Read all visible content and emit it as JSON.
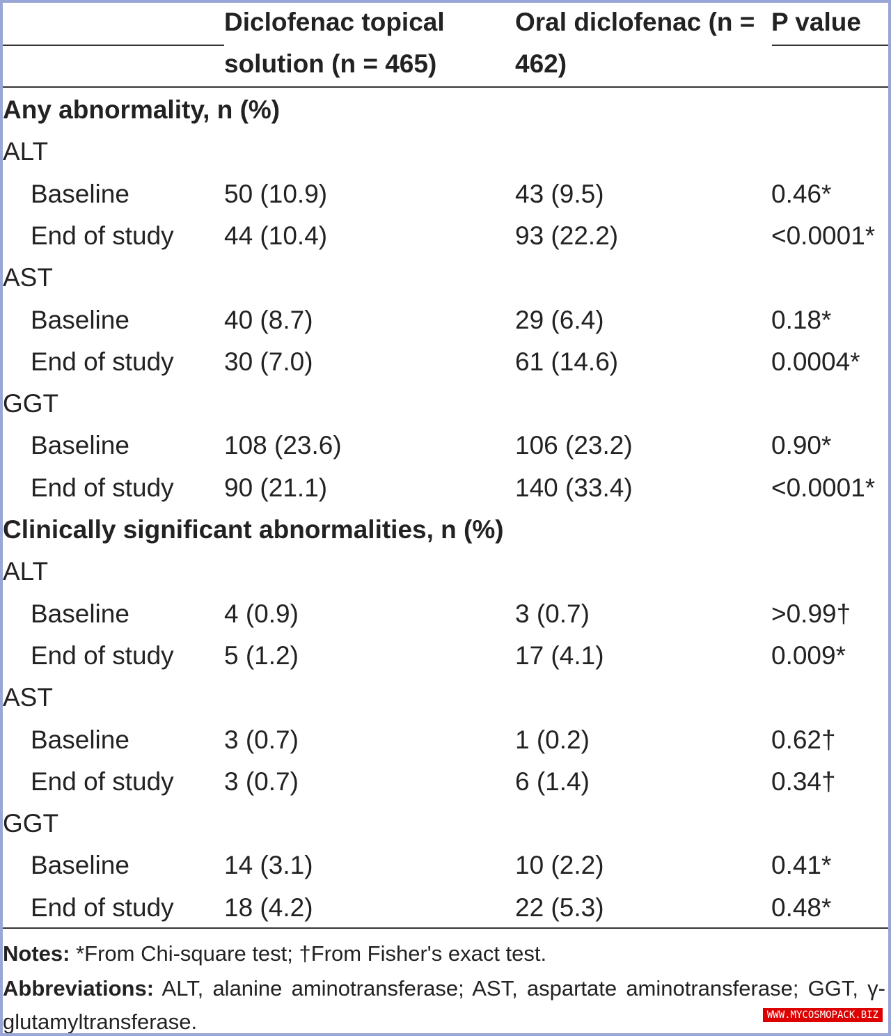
{
  "table": {
    "header": [
      "Diclofenac topical solution (n = 465)",
      "Oral diclofenac (n = 462)",
      "P value"
    ],
    "sections": [
      {
        "title": "Any abnormality, n (%)",
        "groups": [
          {
            "label": "ALT",
            "rows": [
              [
                "Baseline",
                "50 (10.9)",
                "43 (9.5)",
                "0.46*"
              ],
              [
                "End of study",
                "44 (10.4)",
                "93 (22.2)",
                "<0.0001*"
              ]
            ]
          },
          {
            "label": "AST",
            "rows": [
              [
                "Baseline",
                "40 (8.7)",
                "29 (6.4)",
                "0.18*"
              ],
              [
                "End of study",
                "30 (7.0)",
                "61 (14.6)",
                "0.0004*"
              ]
            ]
          },
          {
            "label": "GGT",
            "rows": [
              [
                "Baseline",
                "108 (23.6)",
                "106 (23.2)",
                "0.90*"
              ],
              [
                "End of study",
                "90 (21.1)",
                "140 (33.4)",
                "<0.0001*"
              ]
            ]
          }
        ]
      },
      {
        "title": "Clinically significant abnormalities, n (%)",
        "groups": [
          {
            "label": "ALT",
            "rows": [
              [
                "Baseline",
                "4 (0.9)",
                "3 (0.7)",
                ">0.99†"
              ],
              [
                "End of study",
                "5 (1.2)",
                "17 (4.1)",
                "0.009*"
              ]
            ]
          },
          {
            "label": "AST",
            "rows": [
              [
                "Baseline",
                "3 (0.7)",
                "1 (0.2)",
                "0.62†"
              ],
              [
                "End of study",
                "3 (0.7)",
                "6 (1.4)",
                "0.34†"
              ]
            ]
          },
          {
            "label": "GGT",
            "rows": [
              [
                "Baseline",
                "14 (3.1)",
                "10 (2.2)",
                "0.41*"
              ],
              [
                "End of study",
                "18 (4.2)",
                "22 (5.3)",
                "0.48*"
              ]
            ]
          }
        ]
      }
    ]
  },
  "notes": {
    "label": "Notes:",
    "text": "*From Chi-square test; †From Fisher's exact test."
  },
  "abbreviations": {
    "label": "Abbreviations:",
    "text": "ALT, alanine aminotransferase; AST, aspartate aminotransferase; GGT, γ-glutamyltransferase."
  },
  "watermark": "WWW.MYCOSMOPACK.BIZ"
}
